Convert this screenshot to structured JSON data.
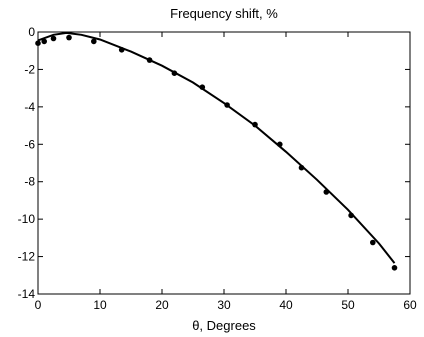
{
  "chart_data": {
    "type": "scatter",
    "title": "Frequency shift, %",
    "xlabel": "θ, Degrees",
    "ylabel": "",
    "xlim": [
      0,
      60
    ],
    "ylim": [
      -14,
      0
    ],
    "xticks": [
      0,
      10,
      20,
      30,
      40,
      50,
      60
    ],
    "yticks": [
      0,
      -2,
      -4,
      -6,
      -8,
      -10,
      -12,
      -14
    ],
    "grid": false,
    "series": [
      {
        "kind": "points",
        "x": [
          0,
          1,
          2.5,
          5,
          9,
          13.5,
          18,
          22,
          26.5,
          30.5,
          35,
          39,
          42.5,
          46.5,
          50.5,
          54,
          57.5
        ],
        "y": [
          -0.6,
          -0.5,
          -0.35,
          -0.3,
          -0.5,
          -0.95,
          -1.5,
          -2.2,
          -2.95,
          -3.9,
          -4.95,
          -6.0,
          -7.25,
          -8.55,
          -9.8,
          -11.25,
          -12.6
        ]
      },
      {
        "kind": "line",
        "x": [
          0,
          2.5,
          4.6,
          7,
          10,
          15,
          20,
          25,
          30,
          35,
          40,
          45,
          50,
          55,
          57.5
        ],
        "y": [
          -0.45,
          -0.15,
          -0.05,
          -0.15,
          -0.4,
          -1.05,
          -1.8,
          -2.7,
          -3.8,
          -5.0,
          -6.4,
          -7.9,
          -9.5,
          -11.3,
          -12.35
        ]
      }
    ]
  }
}
